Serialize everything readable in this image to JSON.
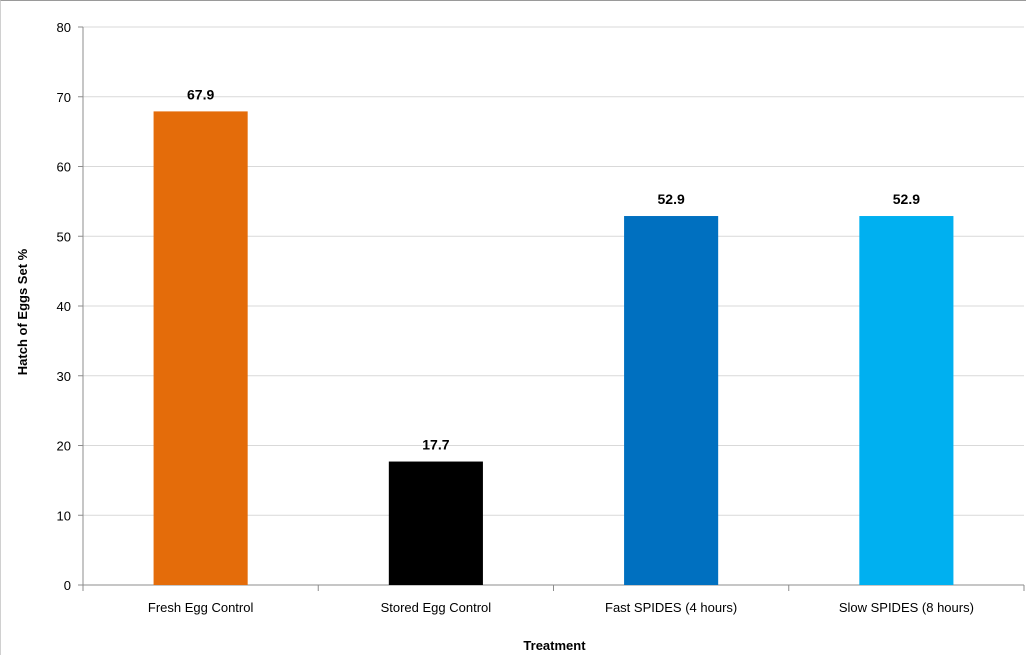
{
  "chart_data": {
    "type": "bar",
    "title": "",
    "xlabel": "Treatment",
    "ylabel": "Hatch of Eggs Set %",
    "categories": [
      "Fresh Egg Control",
      "Stored Egg Control",
      "Fast SPIDES (4 hours)",
      "Slow SPIDES (8 hours)"
    ],
    "values": [
      67.9,
      17.7,
      52.9,
      52.9
    ],
    "data_labels": [
      "67.9",
      "17.7",
      "52.9",
      "52.9"
    ],
    "colors": [
      "#e46c0a",
      "#000000",
      "#0070c0",
      "#00b0f0"
    ],
    "ylim": [
      0,
      80
    ],
    "yticks": [
      0,
      10,
      20,
      30,
      40,
      50,
      60,
      70,
      80
    ],
    "grid": true,
    "legend": "none"
  }
}
